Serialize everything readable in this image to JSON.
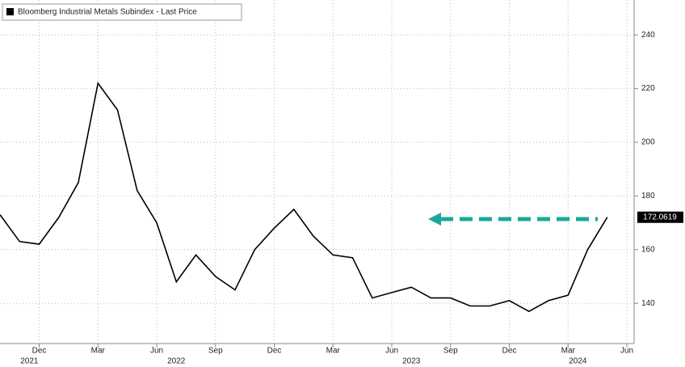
{
  "chart_data": {
    "type": "line",
    "x": [
      "2021-10",
      "2021-11",
      "2021-12",
      "2022-01",
      "2022-02",
      "2022-03",
      "2022-04",
      "2022-05",
      "2022-06",
      "2022-07",
      "2022-08",
      "2022-09",
      "2022-10",
      "2022-11",
      "2022-12",
      "2023-01",
      "2023-02",
      "2023-03",
      "2023-04",
      "2023-05",
      "2023-06",
      "2023-07",
      "2023-08",
      "2023-09",
      "2023-10",
      "2023-11",
      "2023-12",
      "2024-01",
      "2024-02",
      "2024-03",
      "2024-04",
      "2024-05"
    ],
    "series": [
      {
        "name": "Bloomberg Industrial Metals Subindex - Last Price",
        "color": "#000000",
        "values": [
          173,
          163,
          162,
          172,
          185,
          222,
          212,
          182,
          170,
          148,
          158,
          150,
          145,
          160,
          168,
          175,
          165,
          158,
          157,
          142,
          144,
          146,
          142,
          142,
          139,
          139,
          141,
          137,
          141,
          143,
          160,
          172.0619
        ]
      }
    ],
    "xlim": [
      "2021-10",
      "2024-06"
    ],
    "xticks": [
      {
        "value": "2021-12",
        "label": "Dec"
      },
      {
        "value": "2022-03",
        "label": "Mar"
      },
      {
        "value": "2022-06",
        "label": "Jun"
      },
      {
        "value": "2022-09",
        "label": "Sep"
      },
      {
        "value": "2022-12",
        "label": "Dec"
      },
      {
        "value": "2023-03",
        "label": "Mar"
      },
      {
        "value": "2023-06",
        "label": "Jun"
      },
      {
        "value": "2023-09",
        "label": "Sep"
      },
      {
        "value": "2023-12",
        "label": "Dec"
      },
      {
        "value": "2024-03",
        "label": "Mar"
      },
      {
        "value": "2024-06",
        "label": "Jun"
      }
    ],
    "year_labels": [
      "2021",
      "2022",
      "2023",
      "2024"
    ],
    "ylim": [
      125,
      253
    ],
    "yticks": [
      140,
      160,
      180,
      200,
      220,
      240
    ],
    "grid": true
  }
}
